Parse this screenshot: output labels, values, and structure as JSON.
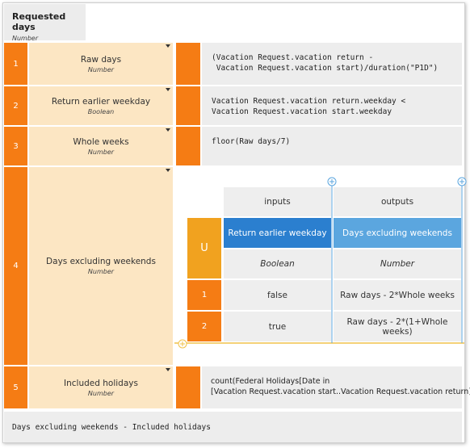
{
  "header": {
    "title": "Requested days",
    "type": "Number"
  },
  "rows": [
    {
      "number": "1",
      "name": "Raw days",
      "type": "Number",
      "expression": [
        "(Vacation Request.vacation return -",
        " Vacation Request.vacation start)/duration(\"P1D\")"
      ]
    },
    {
      "number": "2",
      "name": "Return earlier weekday",
      "type": "Boolean",
      "expression": [
        "Vacation Request.vacation return.weekday <",
        "Vacation Request.vacation start.weekday"
      ]
    },
    {
      "number": "3",
      "name": "Whole weeks",
      "type": "Number",
      "expression": [
        "floor(Raw days/7)"
      ]
    },
    {
      "number": "4",
      "name": "Days excluding weekends",
      "type": "Number",
      "decision_table": {
        "hit_policy": "U",
        "input_header": "inputs",
        "output_header": "outputs",
        "input": {
          "name": "Return earlier weekday",
          "type": "Boolean"
        },
        "output": {
          "name": "Days excluding weekends",
          "type": "Number"
        },
        "rules": [
          {
            "number": "1",
            "input": "false",
            "output": "Raw days - 2*Whole weeks"
          },
          {
            "number": "2",
            "input": "true",
            "output": "Raw days - 2*(1+Whole weeks)"
          }
        ]
      }
    },
    {
      "number": "5",
      "name": "Included holidays",
      "type": "Number",
      "expression": [
        "count(Federal Holidays[Date in",
        "[Vacation Request.vacation start..Vacation Request.vacation return])"
      ]
    }
  ],
  "result": "Days excluding weekends - Included holidays"
}
